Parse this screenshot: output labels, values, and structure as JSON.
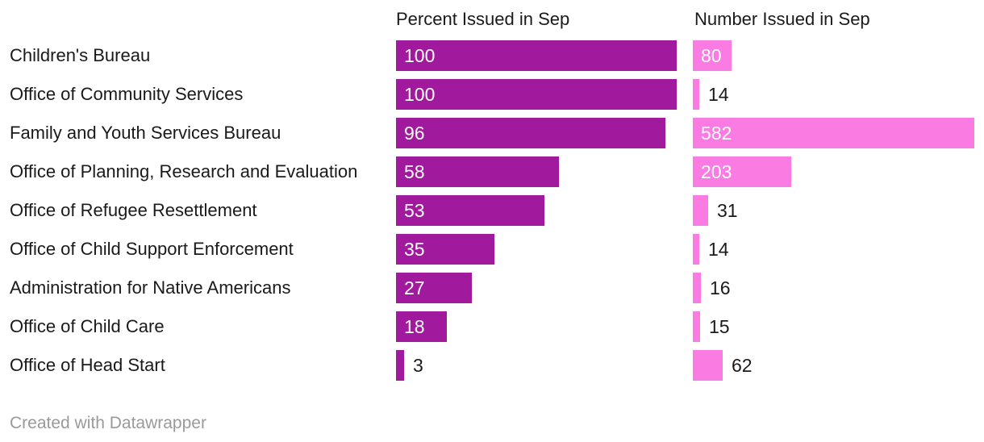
{
  "chart_data": {
    "type": "bar",
    "orientation": "horizontal",
    "grid": false,
    "legend_position": "none",
    "categories": [
      "Children's Bureau",
      "Office of Community Services",
      "Family and Youth Services Bureau",
      "Office of Planning, Research and Evaluation",
      "Office of Refugee Resettlement",
      "Office of Child Support Enforcement",
      "Administration for Native Americans",
      "Office of Child Care",
      "Office of Head Start"
    ],
    "series": [
      {
        "name": "Percent Issued in Sep",
        "values": [
          100,
          100,
          96,
          58,
          53,
          35,
          27,
          18,
          3
        ],
        "axis_max": 100
      },
      {
        "name": "Number Issued in Sep",
        "values": [
          80,
          14,
          582,
          203,
          31,
          14,
          16,
          15,
          62
        ],
        "axis_max": 582
      }
    ]
  },
  "footer": {
    "credit": "Created with Datawrapper"
  },
  "colors": {
    "percent_bar": "#a11a9e",
    "number_bar": "#fa7be2",
    "value_inside_text": "#ffffff",
    "value_outside_text": "#1a1a1a",
    "label_text": "#1a1a1a",
    "credit_text": "#9a9a9a",
    "background": "#ffffff"
  }
}
